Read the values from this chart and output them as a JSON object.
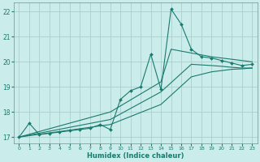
{
  "xlabel": "Humidex (Indice chaleur)",
  "bg_color": "#caecea",
  "grid_color": "#aacfcd",
  "line_color": "#1a7a6e",
  "xlim": [
    -0.5,
    23.5
  ],
  "ylim": [
    16.75,
    22.35
  ],
  "yticks": [
    17,
    18,
    19,
    20,
    21,
    22
  ],
  "xticks": [
    0,
    1,
    2,
    3,
    4,
    5,
    6,
    7,
    8,
    9,
    10,
    11,
    12,
    13,
    14,
    15,
    16,
    17,
    18,
    19,
    20,
    21,
    22,
    23
  ],
  "main_line": {
    "x": [
      0,
      1,
      2,
      3,
      4,
      5,
      6,
      7,
      8,
      9,
      10,
      11,
      12,
      13,
      14,
      15,
      16,
      17,
      18,
      19,
      20,
      21,
      22,
      23
    ],
    "y": [
      17.0,
      17.55,
      17.1,
      17.15,
      17.2,
      17.25,
      17.3,
      17.35,
      17.5,
      17.3,
      18.5,
      18.85,
      19.0,
      20.3,
      18.9,
      22.1,
      21.5,
      20.5,
      20.2,
      20.15,
      20.05,
      19.95,
      19.85,
      19.9
    ]
  },
  "trend_lines": [
    {
      "x": [
        0,
        9,
        14,
        15,
        19,
        20,
        21,
        22,
        23
      ],
      "y": [
        17.0,
        18.0,
        19.2,
        20.5,
        20.2,
        20.15,
        20.1,
        20.05,
        20.0
      ]
    },
    {
      "x": [
        0,
        9,
        14,
        17,
        19,
        20,
        21,
        22,
        23
      ],
      "y": [
        17.0,
        17.7,
        18.8,
        19.9,
        19.85,
        19.82,
        19.78,
        19.75,
        19.75
      ]
    },
    {
      "x": [
        0,
        9,
        14,
        17,
        19,
        20,
        21,
        22,
        23
      ],
      "y": [
        17.0,
        17.5,
        18.3,
        19.4,
        19.6,
        19.65,
        19.7,
        19.72,
        19.75
      ]
    }
  ]
}
